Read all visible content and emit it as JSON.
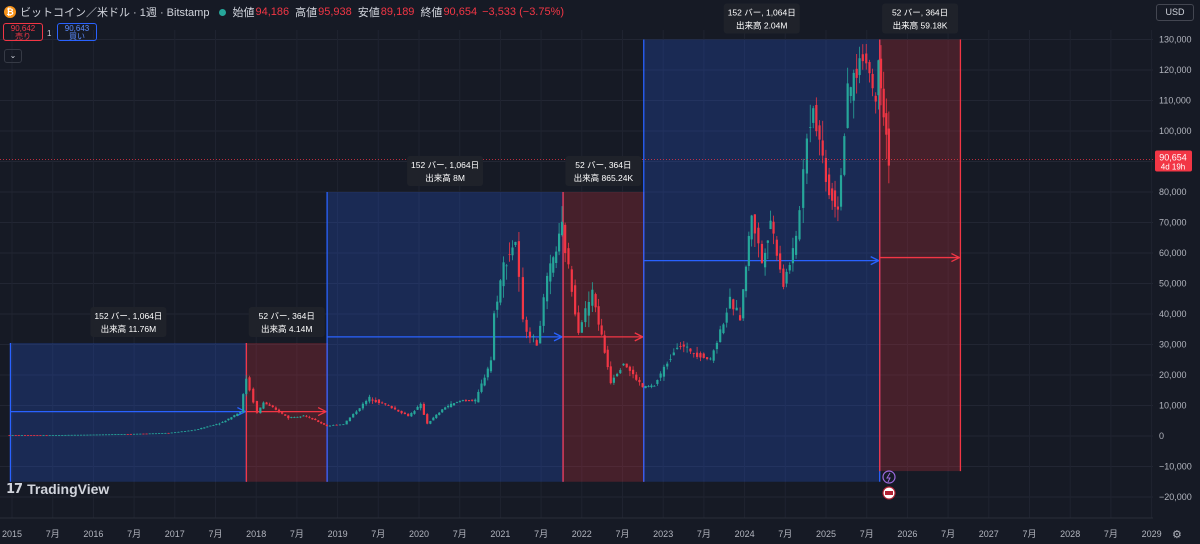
{
  "header": {
    "symbol": "ビットコイン／米ドル · 1週 · Bitstamp",
    "coin_icon": "bitcoin-icon",
    "open_label": "始値",
    "open": "94,186",
    "high_label": "高値",
    "high": "95,938",
    "low_label": "安値",
    "low": "89,189",
    "close_label": "終値",
    "close": "90,654",
    "change": "−3,533 (−3.75%)"
  },
  "trade": {
    "sell_price": "90,642",
    "sell_label": "売り",
    "qty": "1",
    "buy_price": "90,643",
    "buy_label": "買い"
  },
  "currency": "USD",
  "logo": "TradingView",
  "colors": {
    "background": "#161a25",
    "up": "#26a69a",
    "down": "#f23645",
    "range_blue": "#2962ff",
    "range_red": "#f23645"
  },
  "chart_data": {
    "type": "candlestick",
    "x_axis": {
      "labels": [
        "2015",
        "7月",
        "2016",
        "7月",
        "2017",
        "7月",
        "2018",
        "7月",
        "2019",
        "7月",
        "2020",
        "7月",
        "2021",
        "7月",
        "2022",
        "7月",
        "2023",
        "7月",
        "2024",
        "7月",
        "2025",
        "7月",
        "2026",
        "7月",
        "2027",
        "7月",
        "2028",
        "7月",
        "2029"
      ]
    },
    "y_axis": {
      "ticks": [
        130000,
        120000,
        110000,
        100000,
        90000,
        80000,
        70000,
        60000,
        50000,
        40000,
        30000,
        20000,
        10000,
        0,
        -10000,
        -20000
      ],
      "ylim": [
        -22000,
        134000
      ]
    },
    "last_price": {
      "value": "90,654",
      "countdown": "4d 19h"
    },
    "price_path": [
      [
        "2015-01-01",
        300
      ],
      [
        "2015-07-01",
        260
      ],
      [
        "2016-01-01",
        430
      ],
      [
        "2016-07-01",
        650
      ],
      [
        "2017-01-01",
        1000
      ],
      [
        "2017-05-01",
        2000
      ],
      [
        "2017-09-01",
        4500
      ],
      [
        "2017-11-20",
        8000
      ],
      [
        "2017-12-17",
        19000
      ],
      [
        "2018-02-05",
        7500
      ],
      [
        "2018-03-05",
        11000
      ],
      [
        "2018-06-25",
        6000
      ],
      [
        "2018-09-01",
        6800
      ],
      [
        "2018-11-20",
        4200
      ],
      [
        "2018-12-15",
        3300
      ],
      [
        "2019-03-01",
        3900
      ],
      [
        "2019-06-26",
        12500
      ],
      [
        "2019-09-20",
        9800
      ],
      [
        "2019-12-18",
        6600
      ],
      [
        "2020-02-12",
        10200
      ],
      [
        "2020-03-13",
        4100
      ],
      [
        "2020-06-01",
        9500
      ],
      [
        "2020-08-20",
        11800
      ],
      [
        "2020-10-15",
        11500
      ],
      [
        "2020-12-25",
        25000
      ],
      [
        "2021-01-08",
        40000
      ],
      [
        "2021-02-20",
        56000
      ],
      [
        "2021-04-14",
        64000
      ],
      [
        "2021-05-20",
        37000
      ],
      [
        "2021-07-20",
        30000
      ],
      [
        "2021-09-05",
        51000
      ],
      [
        "2021-11-10",
        68000
      ],
      [
        "2022-01-24",
        35000
      ],
      [
        "2022-03-28",
        47000
      ],
      [
        "2022-06-18",
        18000
      ],
      [
        "2022-08-15",
        24000
      ],
      [
        "2022-11-09",
        16000
      ],
      [
        "2022-12-31",
        16500
      ],
      [
        "2023-03-15",
        26000
      ],
      [
        "2023-04-14",
        30000
      ],
      [
        "2023-09-11",
        25000
      ],
      [
        "2023-12-08",
        44000
      ],
      [
        "2024-01-23",
        39000
      ],
      [
        "2024-03-14",
        73000
      ],
      [
        "2024-05-01",
        57000
      ],
      [
        "2024-06-07",
        71000
      ],
      [
        "2024-08-05",
        50000
      ],
      [
        "2024-10-01",
        64000
      ],
      [
        "2024-11-20",
        99000
      ],
      [
        "2024-12-17",
        108000
      ],
      [
        "2025-02-27",
        80000
      ],
      [
        "2025-04-07",
        75000
      ],
      [
        "2025-05-22",
        111000
      ],
      [
        "2025-07-14",
        123000
      ],
      [
        "2025-08-14",
        124000
      ],
      [
        "2025-09-25",
        109000
      ],
      [
        "2025-10-06",
        126000
      ],
      [
        "2025-10-30",
        107000
      ],
      [
        "2025-11-22",
        90654
      ]
    ],
    "ranges": [
      {
        "kind": "blue",
        "start": "2015-01-12",
        "end": "2017-12-11",
        "low": -15000,
        "high": 30500,
        "arrow_y": 8000,
        "label": "152 バー, 1,064日",
        "volume": "出来高 11.76M"
      },
      {
        "kind": "red",
        "start": "2017-12-11",
        "end": "2018-12-10",
        "low": -15000,
        "high": 30500,
        "arrow_y": 8000,
        "label": "52 バー, 364日",
        "volume": "出来高 4.14M"
      },
      {
        "kind": "blue",
        "start": "2018-12-10",
        "end": "2021-11-08",
        "low": -15000,
        "high": 80000,
        "arrow_y": 32500,
        "label": "152 バー, 1,064日",
        "volume": "出来高 8M"
      },
      {
        "kind": "red",
        "start": "2021-11-08",
        "end": "2022-11-07",
        "low": -15000,
        "high": 80000,
        "arrow_y": 32500,
        "label": "52 バー, 364日",
        "volume": "出来高 865.24K"
      },
      {
        "kind": "blue",
        "start": "2022-11-07",
        "end": "2025-10-06",
        "low": -15000,
        "high": 130000,
        "arrow_y": 57500,
        "label": "152 バー, 1,064日",
        "volume": "出来高 2.04M"
      },
      {
        "kind": "red",
        "start": "2025-10-06",
        "end": "2026-10-05",
        "low": -11500,
        "high": 130000,
        "arrow_y": 58500,
        "label": "52 バー, 364日",
        "volume": "出来高 59.18K"
      }
    ]
  }
}
